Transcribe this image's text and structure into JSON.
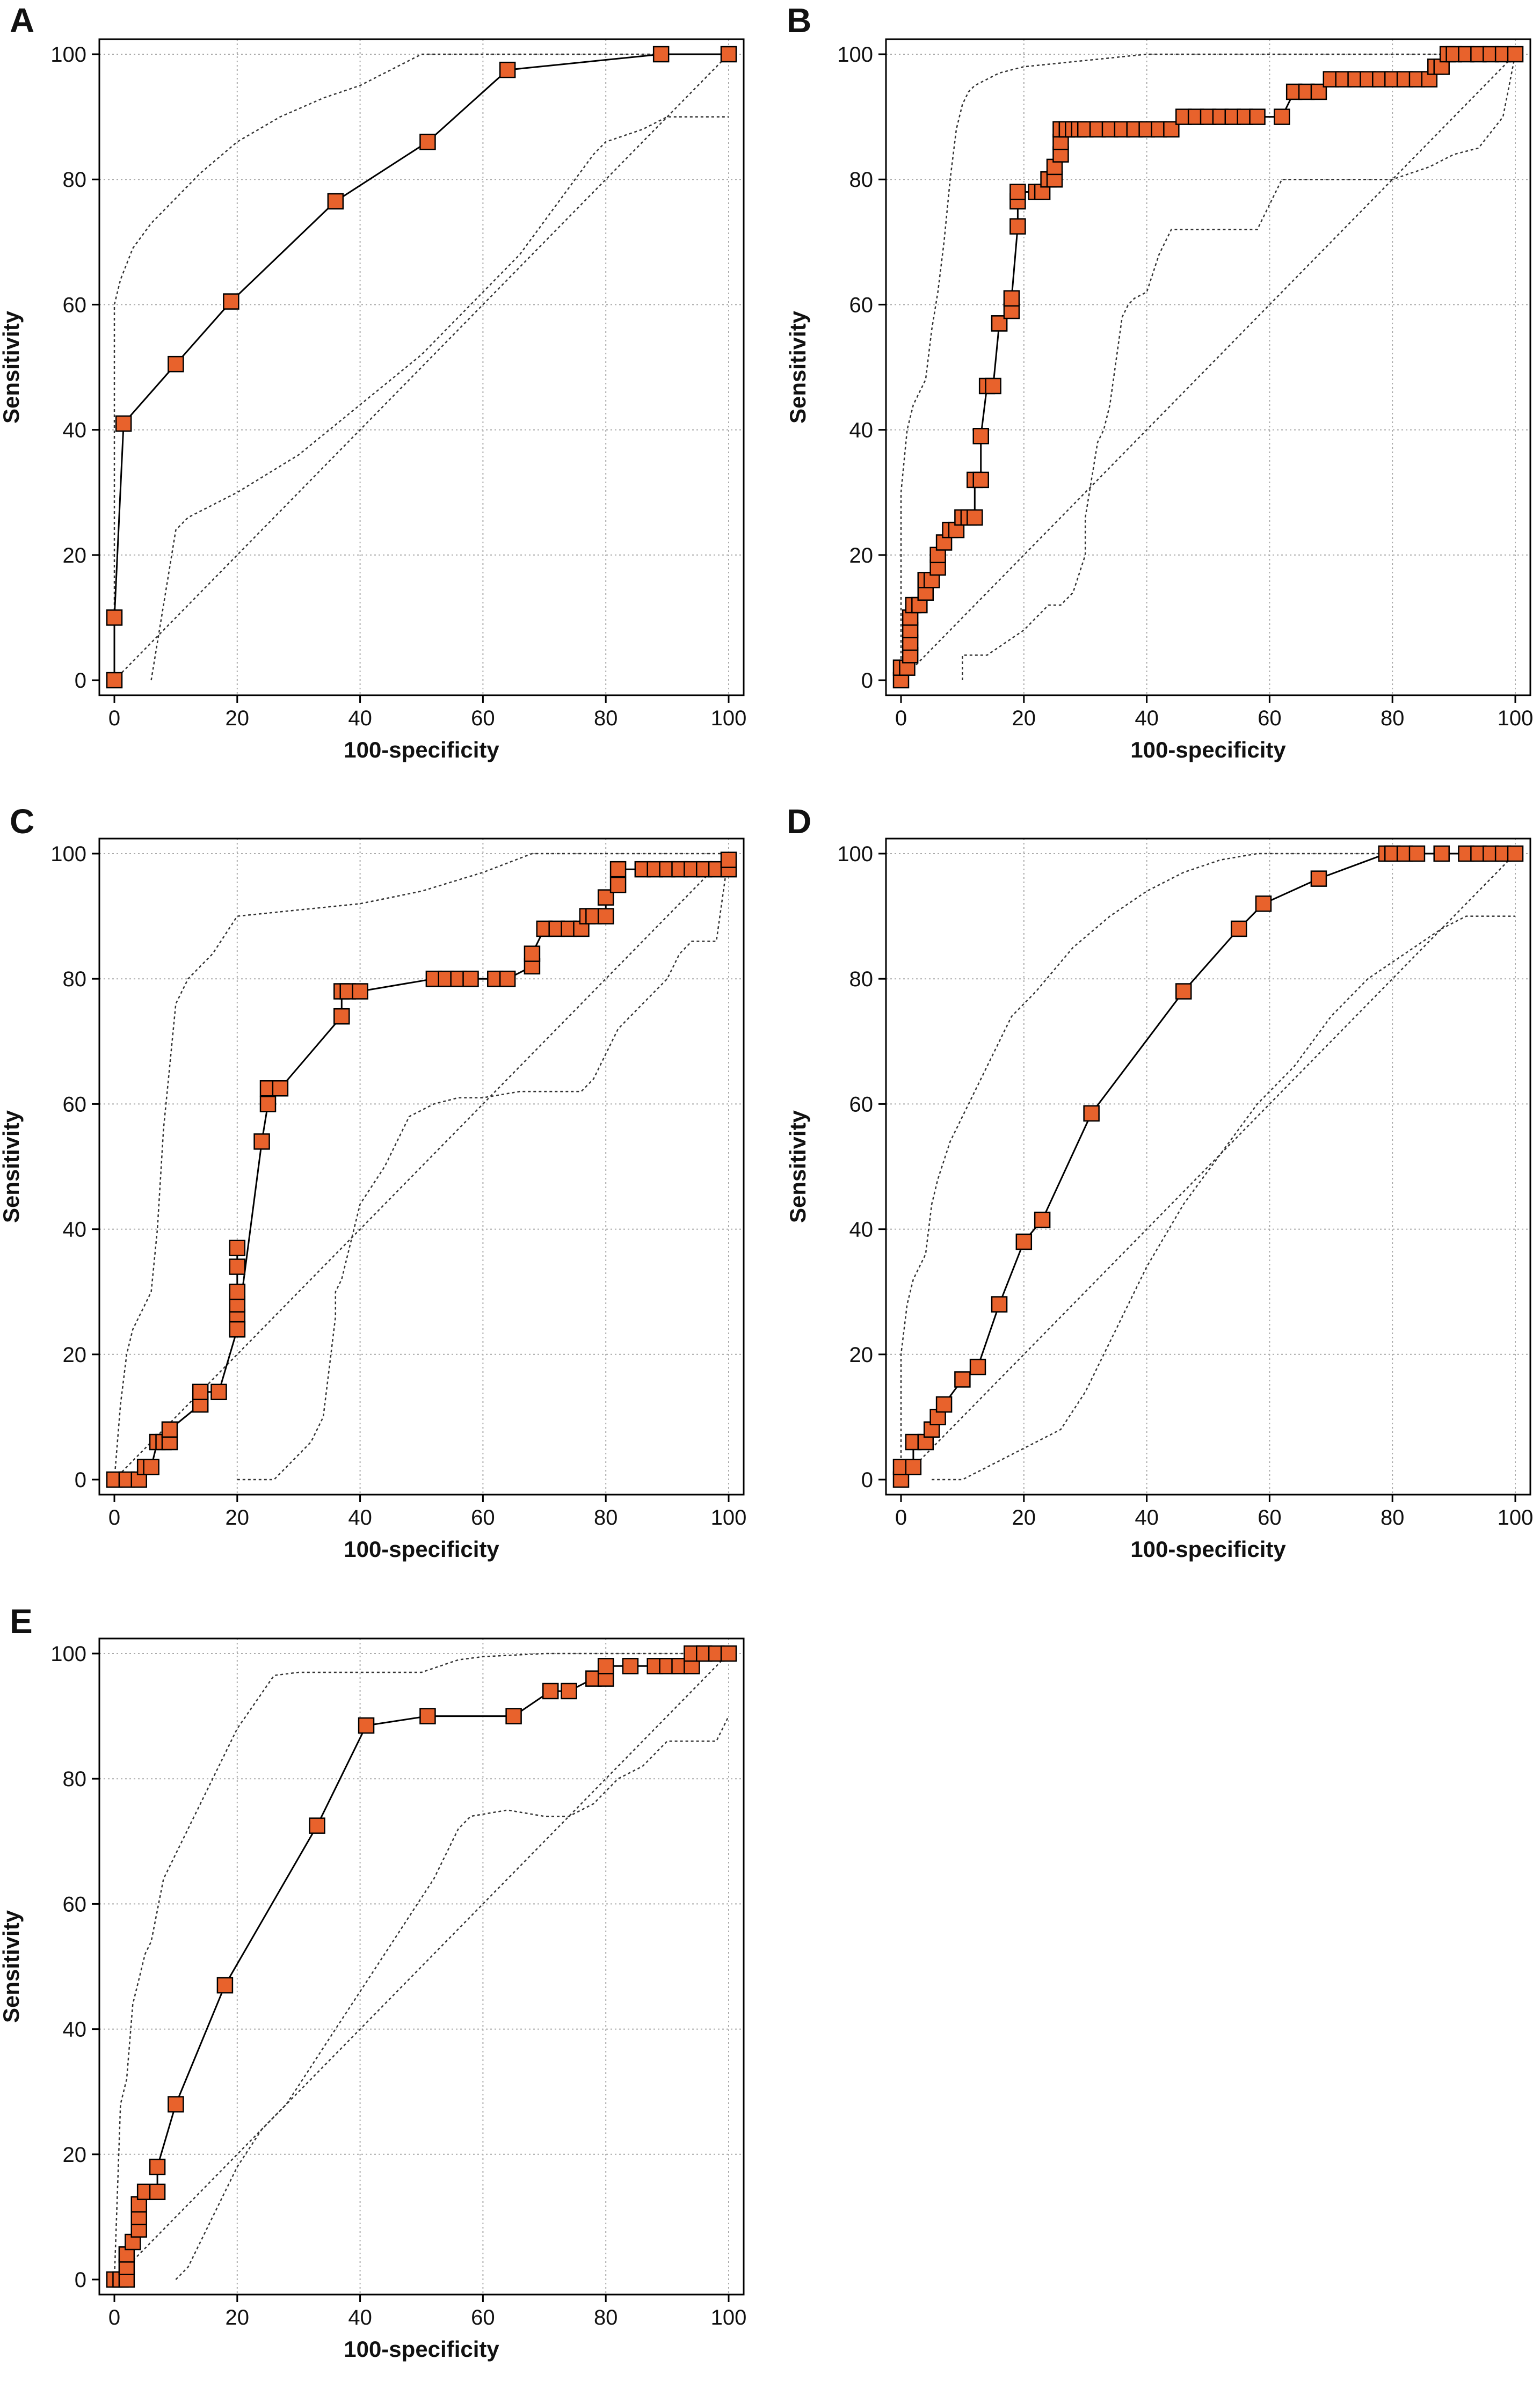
{
  "chart_data": [
    {
      "panel": "A",
      "type": "line",
      "xlabel": "100-specificity",
      "ylabel": "Sensitivity",
      "xlim": [
        0,
        100
      ],
      "ylim": [
        0,
        100
      ],
      "xticks": [
        0,
        20,
        40,
        60,
        80,
        100
      ],
      "yticks": [
        0,
        20,
        40,
        60,
        80,
        100
      ],
      "grid": true,
      "colors": {
        "marker": "#e8622c",
        "line": "#000000",
        "ci": "#333333",
        "grid": "#aaaaaa"
      },
      "series": [
        {
          "role": "roc",
          "x": [
            0,
            0,
            1.5,
            10,
            19,
            36,
            51,
            64,
            89,
            100
          ],
          "y": [
            0,
            10,
            41,
            50.5,
            60.5,
            76.5,
            86,
            97.5,
            100,
            100
          ]
        },
        {
          "role": "ci-upper",
          "x": [
            0,
            0,
            1,
            3,
            6,
            10,
            14,
            20,
            27,
            34,
            40,
            50,
            100
          ],
          "y": [
            0,
            60,
            64,
            69,
            73,
            77,
            81,
            86,
            90,
            93,
            95,
            100,
            100
          ]
        },
        {
          "role": "ci-lower",
          "x": [
            6,
            8,
            10,
            12,
            20,
            30,
            40,
            50,
            60,
            66,
            72,
            78,
            80,
            86,
            90,
            96,
            100
          ],
          "y": [
            0,
            12,
            24,
            26,
            30,
            36,
            44,
            52,
            62,
            68,
            76,
            84,
            86,
            88,
            90,
            90,
            90
          ]
        },
        {
          "role": "reference",
          "x": [
            0,
            100
          ],
          "y": [
            0,
            100
          ]
        }
      ]
    },
    {
      "panel": "B",
      "type": "line",
      "xlabel": "100-specificity",
      "ylabel": "Sensitivity",
      "xlim": [
        0,
        100
      ],
      "ylim": [
        0,
        100
      ],
      "xticks": [
        0,
        20,
        40,
        60,
        80,
        100
      ],
      "yticks": [
        0,
        20,
        40,
        60,
        80,
        100
      ],
      "grid": true,
      "colors": {
        "marker": "#e8622c",
        "line": "#000000",
        "ci": "#333333",
        "grid": "#aaaaaa"
      },
      "series": [
        {
          "role": "roc",
          "x": [
            0,
            0,
            1,
            1.5,
            1.5,
            1.5,
            1.5,
            2,
            3,
            4,
            4,
            5,
            6,
            6,
            7,
            8,
            9,
            10,
            11,
            12,
            12,
            13,
            13,
            14,
            15,
            16,
            16,
            18,
            18,
            19,
            19,
            19,
            22,
            23,
            24,
            25,
            25,
            26,
            26,
            26,
            27,
            27,
            28,
            29,
            30,
            32,
            34,
            36,
            38,
            40,
            42,
            44,
            46,
            48,
            50,
            52,
            54,
            56,
            58,
            62,
            64,
            66,
            68,
            70,
            72,
            74,
            76,
            78,
            80,
            82,
            84,
            86,
            87,
            88,
            89,
            90,
            92,
            94,
            96,
            98,
            100
          ],
          "y": [
            0,
            2,
            2,
            4,
            6,
            8,
            10,
            12,
            12,
            14,
            16,
            16,
            18,
            20,
            22,
            24,
            24,
            26,
            26,
            26,
            32,
            32,
            39,
            47,
            47,
            57,
            57,
            59,
            61,
            72.5,
            76.5,
            78,
            78,
            78,
            80,
            80,
            82,
            84,
            86,
            88,
            88,
            88,
            88,
            88,
            88,
            88,
            88,
            88,
            88,
            88,
            88,
            88,
            90,
            90,
            90,
            90,
            90,
            90,
            90,
            90,
            94,
            94,
            94,
            96,
            96,
            96,
            96,
            96,
            96,
            96,
            96,
            96,
            98,
            98,
            100,
            100,
            100,
            100,
            100,
            100,
            100
          ]
        },
        {
          "role": "ci-upper",
          "x": [
            0,
            0,
            1,
            2,
            3,
            4,
            5,
            6,
            7,
            8,
            9,
            10,
            11,
            12,
            14,
            16,
            20,
            30,
            40,
            50,
            60,
            70,
            80,
            90,
            100
          ],
          "y": [
            0,
            30,
            40,
            44,
            46,
            48,
            56,
            62,
            70,
            80,
            88,
            92,
            94,
            95,
            96,
            97,
            98,
            99,
            100,
            100,
            100,
            100,
            100,
            100,
            100
          ]
        },
        {
          "role": "ci-lower",
          "x": [
            10,
            10,
            14,
            20,
            22,
            24,
            26,
            28,
            30,
            30,
            32,
            33,
            34,
            36,
            37,
            38,
            40,
            42,
            44,
            46,
            48,
            50,
            52,
            54,
            56,
            58,
            60,
            62,
            70,
            80,
            86,
            90,
            94,
            98,
            100
          ],
          "y": [
            0,
            4,
            4,
            8,
            10,
            12,
            12,
            14,
            20,
            26,
            38,
            40,
            44,
            58,
            60,
            61,
            62,
            68,
            72,
            72,
            72,
            72,
            72,
            72,
            72,
            72,
            76,
            80,
            80,
            80,
            82,
            84,
            85,
            90,
            100
          ]
        },
        {
          "role": "reference",
          "x": [
            0,
            100
          ],
          "y": [
            0,
            100
          ]
        }
      ]
    },
    {
      "panel": "C",
      "type": "line",
      "xlabel": "100-specificity",
      "ylabel": "Sensitivity",
      "xlim": [
        0,
        100
      ],
      "ylim": [
        0,
        100
      ],
      "xticks": [
        0,
        20,
        40,
        60,
        80,
        100
      ],
      "yticks": [
        0,
        20,
        40,
        60,
        80,
        100
      ],
      "grid": true,
      "colors": {
        "marker": "#e8622c",
        "line": "#000000",
        "ci": "#333333",
        "grid": "#aaaaaa"
      },
      "series": [
        {
          "role": "roc",
          "x": [
            0,
            2,
            4,
            5,
            5,
            6,
            7,
            8,
            9,
            9,
            14,
            14,
            17,
            20,
            20,
            20,
            20,
            20,
            20,
            20,
            20,
            24,
            25,
            25,
            27,
            37,
            37,
            38,
            40,
            52,
            54,
            56,
            58,
            62,
            64,
            68,
            68,
            70,
            72,
            74,
            76,
            77,
            78,
            80,
            80,
            82,
            82,
            86,
            88,
            90,
            92,
            94,
            96,
            98,
            100,
            100
          ],
          "y": [
            0,
            0,
            0,
            2,
            2,
            2,
            6,
            6,
            6,
            8,
            12,
            14,
            14,
            24,
            26,
            28,
            30,
            34,
            37,
            24,
            24,
            54,
            60,
            62.5,
            62.5,
            74,
            78,
            78,
            78,
            80,
            80,
            80,
            80,
            80,
            80,
            82,
            84,
            88,
            88,
            88,
            88,
            90,
            90,
            90,
            93,
            95,
            97.5,
            97.5,
            97.5,
            97.5,
            97.5,
            97.5,
            97.5,
            97.5,
            97.5,
            99
          ]
        },
        {
          "role": "ci-upper",
          "x": [
            0,
            1,
            2,
            3,
            4,
            5,
            6,
            7,
            8,
            9,
            10,
            12,
            16,
            20,
            30,
            40,
            50,
            60,
            68,
            70,
            100
          ],
          "y": [
            0,
            12,
            20,
            24,
            26,
            28,
            30,
            40,
            56,
            66,
            76,
            80,
            84,
            90,
            91,
            92,
            94,
            97,
            100,
            100,
            100
          ]
        },
        {
          "role": "ci-lower",
          "x": [
            20,
            26,
            30,
            32,
            34,
            35,
            36,
            36,
            37,
            38,
            40,
            44,
            48,
            52,
            56,
            60,
            66,
            72,
            76,
            78,
            80,
            82,
            86,
            90,
            92,
            94,
            98,
            100
          ],
          "y": [
            0,
            0,
            4,
            6,
            10,
            18,
            26,
            30,
            32,
            36,
            44,
            50,
            58,
            60,
            61,
            61,
            62,
            62,
            62,
            64,
            68,
            72,
            76,
            80,
            84,
            86,
            86,
            100
          ]
        },
        {
          "role": "reference",
          "x": [
            0,
            100
          ],
          "y": [
            0,
            100
          ]
        }
      ]
    },
    {
      "panel": "D",
      "type": "line",
      "xlabel": "100-specificity",
      "ylabel": "Sensitivity",
      "xlim": [
        0,
        100
      ],
      "ylim": [
        0,
        100
      ],
      "xticks": [
        0,
        20,
        40,
        60,
        80,
        100
      ],
      "yticks": [
        0,
        20,
        40,
        60,
        80,
        100
      ],
      "grid": true,
      "colors": {
        "marker": "#e8622c",
        "line": "#000000",
        "ci": "#333333",
        "grid": "#aaaaaa"
      },
      "series": [
        {
          "role": "roc",
          "x": [
            0,
            0,
            2,
            2,
            4,
            5,
            6,
            7,
            10,
            12.5,
            16,
            20,
            23,
            31,
            46,
            55,
            59,
            68,
            79,
            80,
            82,
            84,
            88,
            92,
            94,
            96,
            98,
            100
          ],
          "y": [
            0,
            2,
            2,
            6,
            6,
            8,
            10,
            12,
            16,
            18,
            28,
            38,
            41.5,
            58.5,
            78,
            88,
            92,
            96,
            100,
            100,
            100,
            100,
            100,
            100,
            100,
            100,
            100,
            100
          ]
        },
        {
          "role": "ci-upper",
          "x": [
            0,
            0,
            1,
            2,
            3,
            4,
            5,
            6,
            8,
            10,
            14,
            18,
            22,
            28,
            34,
            40,
            46,
            52,
            58,
            100
          ],
          "y": [
            0,
            20,
            28,
            32,
            34,
            36,
            44,
            48,
            54,
            58,
            66,
            74,
            78,
            85,
            90,
            94,
            97,
            99,
            100,
            100
          ]
        },
        {
          "role": "ci-lower",
          "x": [
            5,
            10,
            14,
            18,
            22,
            26,
            30,
            34,
            40,
            46,
            52,
            58,
            64,
            70,
            76,
            82,
            88,
            92,
            96,
            100
          ],
          "y": [
            0,
            0,
            2,
            4,
            6,
            8,
            14,
            22,
            34,
            44,
            52,
            60,
            66,
            74,
            80,
            84,
            88,
            90,
            90,
            90
          ]
        },
        {
          "role": "reference",
          "x": [
            0,
            100
          ],
          "y": [
            0,
            100
          ]
        }
      ]
    },
    {
      "panel": "E",
      "type": "line",
      "xlabel": "100-specificity",
      "ylabel": "Sensitivity",
      "xlim": [
        0,
        100
      ],
      "ylim": [
        0,
        100
      ],
      "xticks": [
        0,
        20,
        40,
        60,
        80,
        100
      ],
      "yticks": [
        0,
        20,
        40,
        60,
        80,
        100
      ],
      "grid": true,
      "colors": {
        "marker": "#e8622c",
        "line": "#000000",
        "ci": "#333333",
        "grid": "#aaaaaa"
      },
      "series": [
        {
          "role": "roc",
          "x": [
            0,
            1,
            2,
            2,
            2,
            3,
            4,
            4,
            4,
            5,
            5,
            7,
            7,
            10,
            18,
            33,
            41,
            51,
            65,
            71,
            74,
            78,
            80,
            80,
            84,
            88,
            90,
            92,
            94,
            94,
            96,
            96,
            98,
            100
          ],
          "y": [
            0,
            0,
            0,
            2,
            4,
            6,
            8,
            10,
            12,
            14,
            14,
            14,
            18,
            28,
            47,
            72.5,
            88.5,
            90,
            90,
            94,
            94,
            96,
            96,
            98,
            98,
            98,
            98,
            98,
            98,
            100,
            100,
            100,
            100,
            100
          ]
        },
        {
          "role": "ci-upper",
          "x": [
            0,
            1,
            2,
            3,
            4,
            5,
            6,
            8,
            10,
            14,
            20,
            26,
            30,
            40,
            50,
            56,
            60,
            70,
            80,
            100
          ],
          "y": [
            0,
            28,
            32,
            44,
            48,
            52,
            54,
            64,
            68,
            76,
            88,
            96.5,
            97,
            97,
            97,
            99,
            99.5,
            100,
            100,
            100
          ]
        },
        {
          "role": "ci-lower",
          "x": [
            10,
            12,
            14,
            16,
            18,
            20,
            24,
            28,
            32,
            36,
            40,
            44,
            48,
            52,
            56,
            58,
            64,
            70,
            74,
            78,
            82,
            86,
            90,
            94,
            98,
            100
          ],
          "y": [
            0,
            2,
            6,
            10,
            14,
            18,
            24,
            28,
            34,
            40,
            46,
            52,
            58,
            64,
            72,
            74,
            75,
            74,
            74,
            76,
            80,
            82,
            86,
            86,
            86,
            90
          ]
        },
        {
          "role": "reference",
          "x": [
            0,
            100
          ],
          "y": [
            0,
            100
          ]
        }
      ]
    }
  ]
}
